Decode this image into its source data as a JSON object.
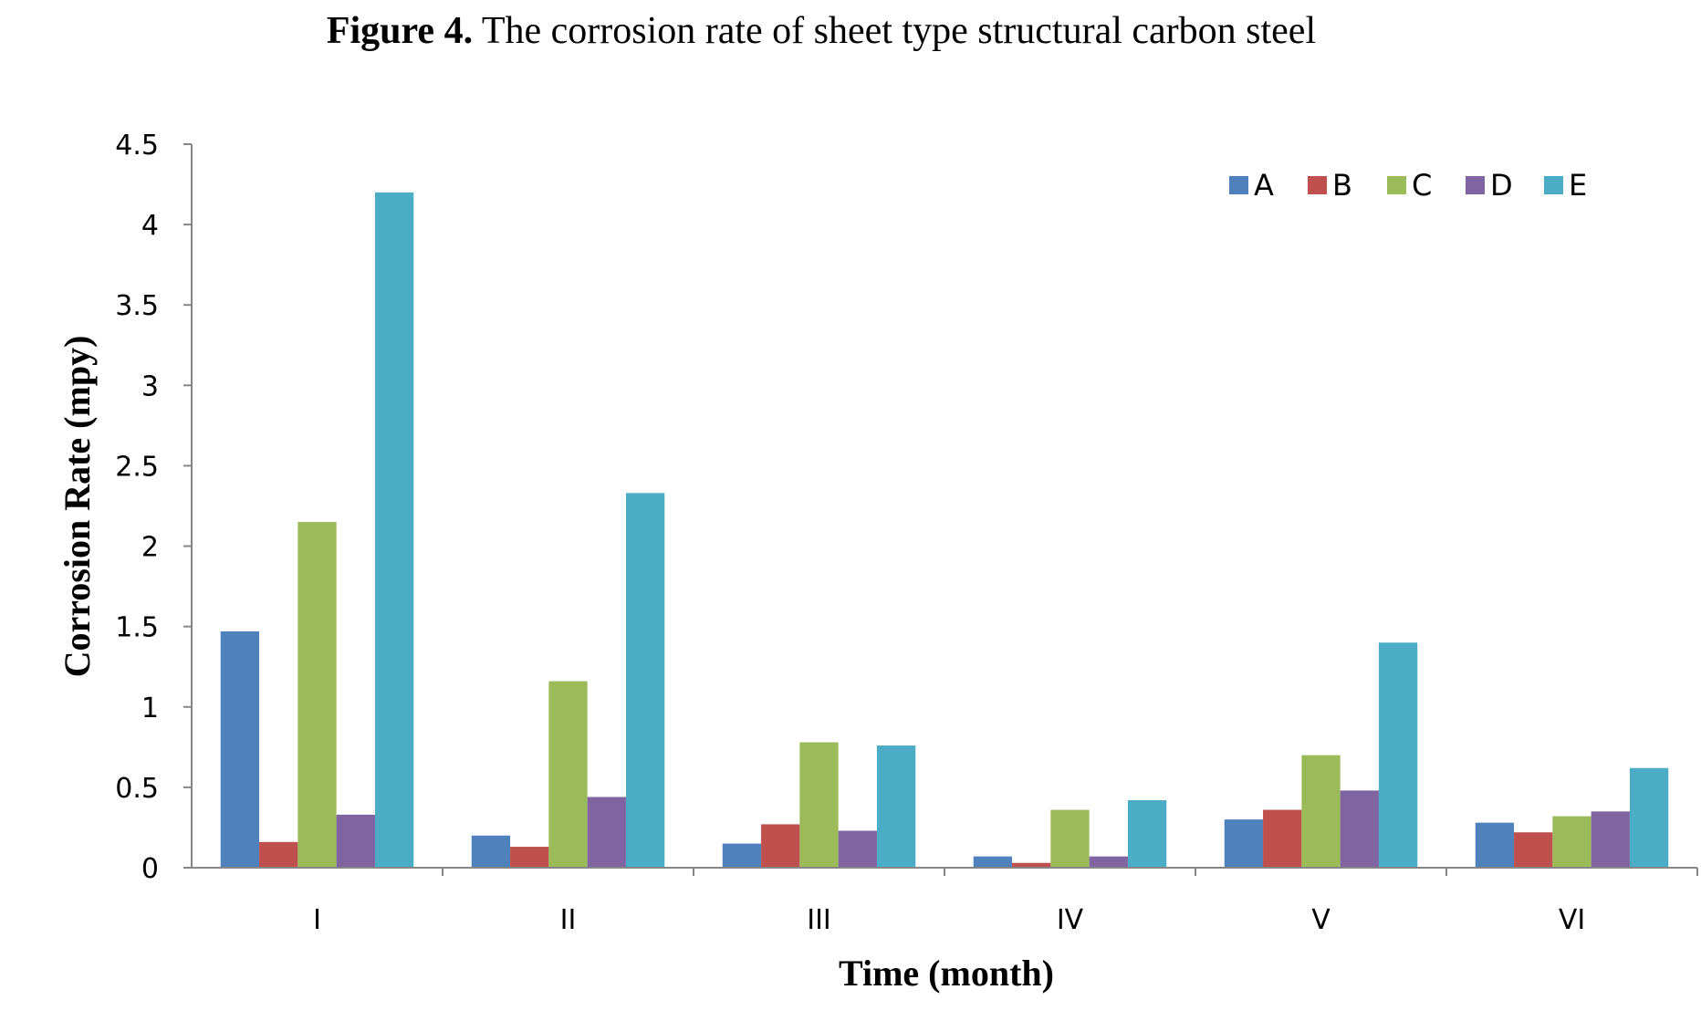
{
  "figure": {
    "title_prefix": "Figure 4.",
    "title_text": " The corrosion rate of sheet type structural carbon steel"
  },
  "chart_data": {
    "type": "bar",
    "title": "Figure 4. The corrosion rate of sheet type structural carbon steel",
    "xlabel": "Time (month)",
    "ylabel": "Corrosion Rate (mpy)",
    "categories": [
      "I",
      "II",
      "III",
      "IV",
      "V",
      "VI"
    ],
    "ylim": [
      0,
      4.5
    ],
    "yticks": [
      "0",
      "0.5",
      "1",
      "1.5",
      "2",
      "2.5",
      "3",
      "3.5",
      "4",
      "4.5"
    ],
    "grid": false,
    "legend_position": "top-right",
    "series": [
      {
        "name": "A",
        "color": "#4F81BD",
        "values": [
          1.47,
          0.2,
          0.15,
          0.07,
          0.3,
          0.28
        ]
      },
      {
        "name": "B",
        "color": "#C0504D",
        "values": [
          0.16,
          0.13,
          0.27,
          0.03,
          0.36,
          0.22
        ]
      },
      {
        "name": "C",
        "color": "#9BBB59",
        "values": [
          2.15,
          1.16,
          0.78,
          0.36,
          0.7,
          0.32
        ]
      },
      {
        "name": "D",
        "color": "#8064A2",
        "values": [
          0.33,
          0.44,
          0.23,
          0.07,
          0.48,
          0.35
        ]
      },
      {
        "name": "E",
        "color": "#4BACC6",
        "values": [
          4.2,
          2.33,
          0.76,
          0.42,
          1.4,
          0.62
        ]
      }
    ]
  }
}
